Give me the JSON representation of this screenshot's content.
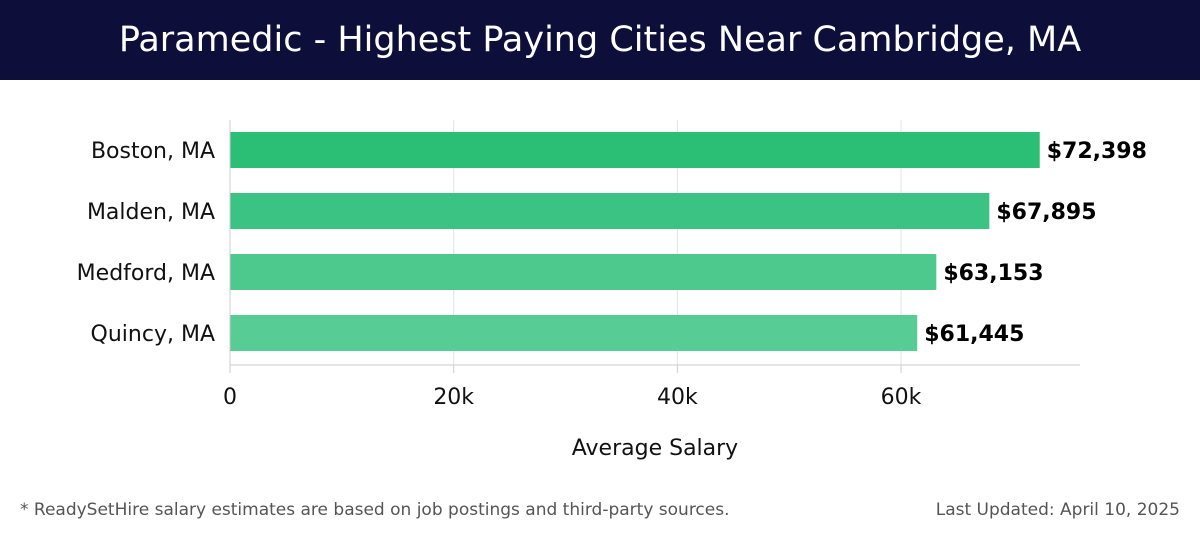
{
  "header": {
    "title": "Paramedic - Highest Paying Cities Near Cambridge, MA"
  },
  "footer": {
    "note": "* ReadySetHire salary estimates are based on job postings and third-party sources.",
    "updated": "Last Updated: April 10, 2025"
  },
  "colors": {
    "header_bg": "#0d0f3a",
    "bar_fills": [
      "#2bbf76",
      "#3ac383",
      "#4ec98e",
      "#58cc95"
    ]
  },
  "chart_data": {
    "type": "bar",
    "orientation": "horizontal",
    "categories": [
      "Boston, MA",
      "Malden, MA",
      "Medford, MA",
      "Quincy, MA"
    ],
    "values": [
      72398,
      67895,
      63153,
      61445
    ],
    "value_labels": [
      "$72,398",
      "$67,895",
      "$63,153",
      "$61,445"
    ],
    "xlabel": "Average Salary",
    "ylabel": "",
    "xlim": [
      0,
      76000
    ],
    "x_ticks": [
      0,
      20000,
      40000,
      60000
    ],
    "x_tick_labels": [
      "0",
      "20k",
      "40k",
      "60k"
    ],
    "grid": true
  }
}
